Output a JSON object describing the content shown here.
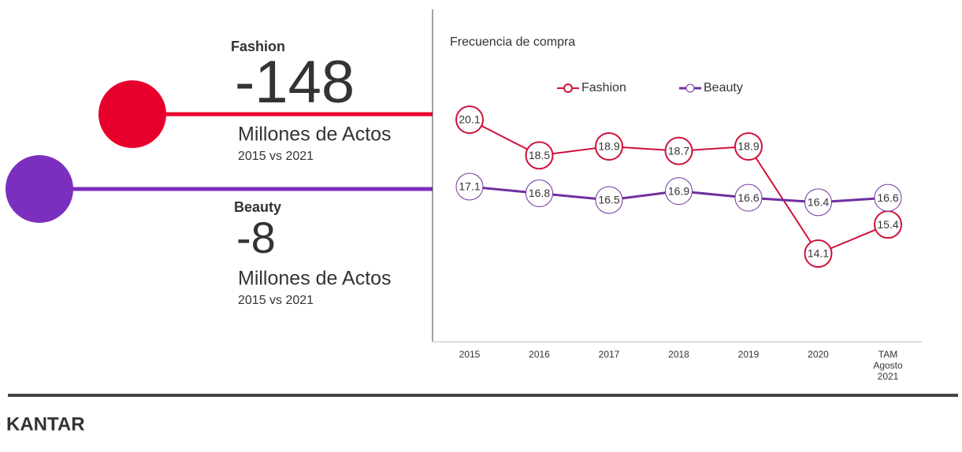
{
  "kpis": [
    {
      "name": "Fashion",
      "value": "-148",
      "unit": "Millones de Actos",
      "period": "2015 vs 2021"
    },
    {
      "name": "Beauty",
      "value": "-8",
      "unit": "Millones de Actos",
      "period": "2015 vs 2021"
    }
  ],
  "chart_data": {
    "type": "line",
    "title": "Frecuencia de compra",
    "categories": [
      "2015",
      "2016",
      "2017",
      "2018",
      "2019",
      "2020",
      "TAM Agosto 2021"
    ],
    "series": [
      {
        "name": "Fashion",
        "color": "#d0103a",
        "values": [
          20.1,
          18.5,
          18.9,
          18.7,
          18.9,
          14.1,
          15.4
        ]
      },
      {
        "name": "Beauty",
        "color": "#7030a0",
        "values": [
          17.1,
          16.8,
          16.5,
          16.9,
          16.6,
          16.4,
          16.6
        ]
      }
    ]
  },
  "footer": {
    "logo": "KANTAR"
  }
}
